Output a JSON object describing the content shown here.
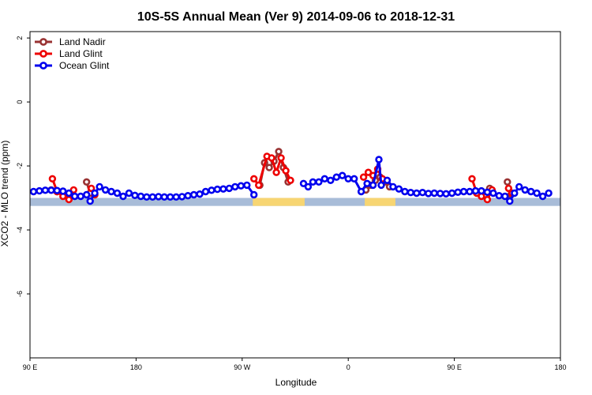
{
  "chart_data": {
    "type": "line",
    "title": "10S-5S Annual Mean (Ver 9)   2014-09-06 to 2018-12-31",
    "xlabel": "Longitude",
    "ylabel": "XCO2 - MLO trend (ppm)",
    "xlim": [
      90,
      540
    ],
    "ylim": [
      -8,
      2.2
    ],
    "x_ticks": [
      {
        "value": 90,
        "label": "90 E"
      },
      {
        "value": 180,
        "label": "180"
      },
      {
        "value": 270,
        "label": "90 W"
      },
      {
        "value": 360,
        "label": "0"
      },
      {
        "value": 450,
        "label": "90 E"
      },
      {
        "value": 540,
        "label": "180"
      }
    ],
    "y_ticks": [
      {
        "value": 2,
        "label": "2"
      },
      {
        "value": 0,
        "label": "0"
      },
      {
        "value": -2,
        "label": "-2"
      },
      {
        "value": -4,
        "label": "-4"
      },
      {
        "value": -6,
        "label": "-6"
      }
    ],
    "legend_position": "top-left",
    "colors": {
      "land_nadir": "#993333",
      "land_glint": "#ee0000",
      "ocean_glint": "#0000ee",
      "ocean_strip": "#a8bcd8",
      "land_strip": "#f7d572"
    },
    "land_strip": {
      "y_range": [
        -3.25,
        -3.0
      ],
      "land_segments": [
        [
          279,
          323
        ],
        [
          374,
          400
        ]
      ]
    },
    "series": [
      {
        "name": "Land Nadir",
        "color": "#993333",
        "segments": [
          [
            [
              108,
              -2.75
            ],
            [
              113,
              -2.8
            ],
            [
              118,
              -2.85
            ],
            [
              123,
              -2.9
            ]
          ],
          [
            [
              138,
              -2.5
            ],
            [
              141,
              -2.85
            ]
          ],
          [
            [
              285,
              -2.6
            ],
            [
              289,
              -1.9
            ],
            [
              293,
              -2.05
            ],
            [
              297,
              -1.85
            ],
            [
              301,
              -1.55
            ],
            [
              305,
              -2.05
            ],
            [
              309,
              -2.5
            ]
          ],
          [
            [
              375,
              -2.75
            ],
            [
              379,
              -2.6
            ],
            [
              383,
              -2.45
            ],
            [
              387,
              -2.35
            ],
            [
              391,
              -2.5
            ],
            [
              395,
              -2.65
            ]
          ],
          [
            [
              468,
              -2.8
            ],
            [
              472,
              -2.85
            ],
            [
              476,
              -2.9
            ],
            [
              480,
              -2.7
            ]
          ],
          [
            [
              495,
              -2.5
            ],
            [
              498,
              -2.9
            ]
          ]
        ]
      },
      {
        "name": "Land Glint",
        "color": "#ee0000",
        "segments": [
          [
            [
              109,
              -2.4
            ],
            [
              113,
              -2.8
            ],
            [
              118,
              -2.95
            ],
            [
              123,
              -3.05
            ],
            [
              127,
              -2.75
            ]
          ],
          [
            [
              142,
              -2.7
            ],
            [
              145,
              -2.9
            ]
          ],
          [
            [
              280,
              -2.4
            ],
            [
              284,
              -2.6
            ],
            [
              291,
              -1.7
            ],
            [
              295,
              -1.75
            ],
            [
              299,
              -2.2
            ],
            [
              303,
              -1.75
            ],
            [
              307,
              -2.15
            ],
            [
              311,
              -2.45
            ]
          ],
          [
            [
              373,
              -2.35
            ],
            [
              377,
              -2.2
            ],
            [
              381,
              -2.3
            ],
            [
              385,
              -2.1
            ],
            [
              389,
              -2.4
            ]
          ],
          [
            [
              465,
              -2.4
            ],
            [
              469,
              -2.85
            ],
            [
              473,
              -2.95
            ],
            [
              478,
              -3.05
            ],
            [
              482,
              -2.75
            ]
          ],
          [
            [
              496,
              -2.7
            ],
            [
              499,
              -2.85
            ]
          ]
        ]
      },
      {
        "name": "Ocean Glint",
        "color": "#0000ee",
        "segments": [
          [
            [
              93,
              -2.8
            ],
            [
              98,
              -2.78
            ],
            [
              103,
              -2.76
            ],
            [
              108,
              -2.76
            ],
            [
              113,
              -2.77
            ],
            [
              118,
              -2.79
            ],
            [
              123,
              -2.85
            ],
            [
              128,
              -2.95
            ],
            [
              133,
              -2.95
            ],
            [
              138,
              -2.9
            ],
            [
              141,
              -3.1
            ],
            [
              145,
              -2.85
            ],
            [
              149,
              -2.65
            ],
            [
              154,
              -2.75
            ],
            [
              159,
              -2.8
            ],
            [
              164,
              -2.85
            ],
            [
              169,
              -2.95
            ],
            [
              174,
              -2.85
            ],
            [
              179,
              -2.92
            ],
            [
              184,
              -2.95
            ],
            [
              189,
              -2.97
            ],
            [
              194,
              -2.97
            ],
            [
              199,
              -2.96
            ],
            [
              204,
              -2.97
            ],
            [
              209,
              -2.97
            ],
            [
              214,
              -2.97
            ],
            [
              219,
              -2.96
            ],
            [
              224,
              -2.93
            ],
            [
              229,
              -2.9
            ],
            [
              234,
              -2.88
            ],
            [
              239,
              -2.8
            ],
            [
              244,
              -2.76
            ],
            [
              249,
              -2.73
            ],
            [
              254,
              -2.72
            ],
            [
              259,
              -2.7
            ],
            [
              264,
              -2.65
            ],
            [
              269,
              -2.62
            ],
            [
              274,
              -2.6
            ],
            [
              280,
              -2.9
            ]
          ],
          [
            [
              322,
              -2.55
            ],
            [
              326,
              -2.65
            ],
            [
              330,
              -2.5
            ],
            [
              335,
              -2.5
            ],
            [
              340,
              -2.4
            ],
            [
              345,
              -2.45
            ],
            [
              350,
              -2.35
            ],
            [
              355,
              -2.3
            ],
            [
              360,
              -2.4
            ],
            [
              365,
              -2.4
            ],
            [
              371,
              -2.8
            ],
            [
              376,
              -2.55
            ],
            [
              381,
              -2.6
            ],
            [
              386,
              -1.8
            ],
            [
              388,
              -2.6
            ],
            [
              393,
              -2.45
            ],
            [
              398,
              -2.65
            ],
            [
              403,
              -2.72
            ],
            [
              408,
              -2.8
            ],
            [
              413,
              -2.83
            ],
            [
              418,
              -2.85
            ],
            [
              423,
              -2.83
            ],
            [
              428,
              -2.86
            ],
            [
              433,
              -2.85
            ],
            [
              438,
              -2.86
            ],
            [
              443,
              -2.87
            ],
            [
              448,
              -2.85
            ],
            [
              453,
              -2.82
            ],
            [
              458,
              -2.8
            ],
            [
              463,
              -2.8
            ],
            [
              468,
              -2.78
            ],
            [
              473,
              -2.78
            ],
            [
              478,
              -2.82
            ],
            [
              483,
              -2.85
            ],
            [
              488,
              -2.93
            ],
            [
              493,
              -2.95
            ],
            [
              497,
              -3.1
            ],
            [
              501,
              -2.85
            ],
            [
              505,
              -2.65
            ],
            [
              510,
              -2.75
            ],
            [
              515,
              -2.8
            ],
            [
              520,
              -2.85
            ],
            [
              525,
              -2.95
            ],
            [
              530,
              -2.85
            ]
          ]
        ]
      }
    ]
  }
}
